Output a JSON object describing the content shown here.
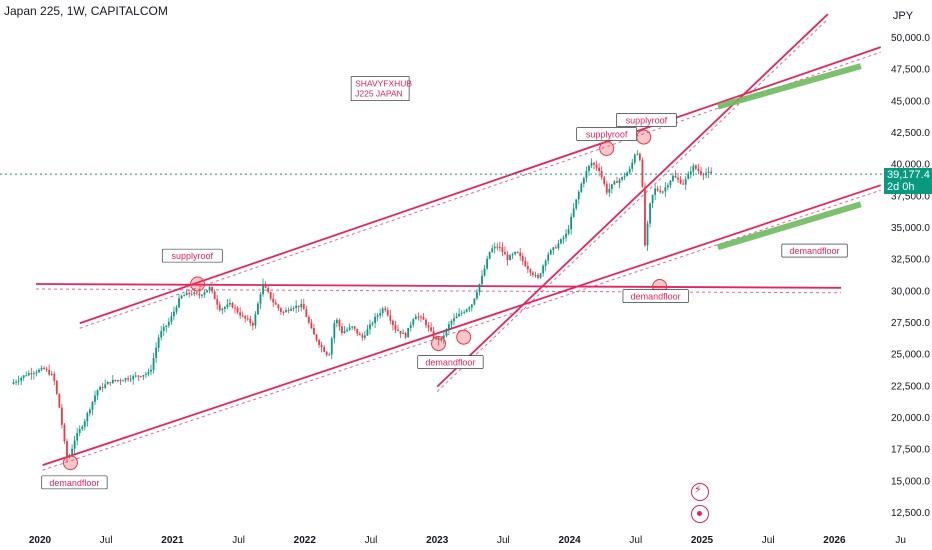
{
  "header": {
    "symbol_title": "Japan 225, 1W, CAPITALCOM",
    "currency": "JPY"
  },
  "last_price": {
    "value": "39,177.4",
    "countdown": "2d 0h",
    "color": "#089981"
  },
  "icons": {
    "alert": "flash-icon",
    "target": "target-icon"
  },
  "colors": {
    "up": "#089981",
    "down": "#f23645",
    "trendline": "#e8245e",
    "zone": "#6dbb5f",
    "label_text": "#e0245e"
  },
  "chart_data": {
    "type": "candlestick",
    "title": "",
    "x_ticks": [
      "2020",
      "Jul",
      "2021",
      "Jul",
      "2022",
      "Jul",
      "2023",
      "Jul",
      "2024",
      "Jul",
      "2025",
      "Jul",
      "2026",
      "Ju"
    ],
    "y_ticks": [
      "50,000.0",
      "47,500.0",
      "45,000.0",
      "42,500.0",
      "40,000.0",
      "37,500.0",
      "35,000.0",
      "32,500.0",
      "30,000.0",
      "27,500.0",
      "25,000.0",
      "22,500.0",
      "20,000.0",
      "17,500.0",
      "15,000.0",
      "12,500.0"
    ],
    "ylim": [
      11500,
      51500
    ],
    "price_path": [
      [
        2019.8,
        22600
      ],
      [
        2019.92,
        23400
      ],
      [
        2020.05,
        23800
      ],
      [
        2020.12,
        23200
      ],
      [
        2020.17,
        20500
      ],
      [
        2020.21,
        17500
      ],
      [
        2020.23,
        16500
      ],
      [
        2020.28,
        18200
      ],
      [
        2020.36,
        19800
      ],
      [
        2020.45,
        22100
      ],
      [
        2020.55,
        22800
      ],
      [
        2020.7,
        23100
      ],
      [
        2020.85,
        23500
      ],
      [
        2020.92,
        26500
      ],
      [
        2021.0,
        27600
      ],
      [
        2021.08,
        29500
      ],
      [
        2021.16,
        29800
      ],
      [
        2021.22,
        29600
      ],
      [
        2021.3,
        30200
      ],
      [
        2021.38,
        28500
      ],
      [
        2021.46,
        28900
      ],
      [
        2021.55,
        27900
      ],
      [
        2021.63,
        27300
      ],
      [
        2021.7,
        30500
      ],
      [
        2021.78,
        29100
      ],
      [
        2021.85,
        28200
      ],
      [
        2021.92,
        28700
      ],
      [
        2022.0,
        28800
      ],
      [
        2022.08,
        26600
      ],
      [
        2022.14,
        25600
      ],
      [
        2022.2,
        24800
      ],
      [
        2022.25,
        27900
      ],
      [
        2022.3,
        26700
      ],
      [
        2022.38,
        27100
      ],
      [
        2022.45,
        26200
      ],
      [
        2022.55,
        27800
      ],
      [
        2022.62,
        28700
      ],
      [
        2022.7,
        27000
      ],
      [
        2022.78,
        26400
      ],
      [
        2022.85,
        28100
      ],
      [
        2022.92,
        27600
      ],
      [
        2023.0,
        26200
      ],
      [
        2023.05,
        26100
      ],
      [
        2023.12,
        27500
      ],
      [
        2023.2,
        28200
      ],
      [
        2023.28,
        28900
      ],
      [
        2023.35,
        30800
      ],
      [
        2023.42,
        33200
      ],
      [
        2023.48,
        33500
      ],
      [
        2023.55,
        32500
      ],
      [
        2023.62,
        33000
      ],
      [
        2023.7,
        31800
      ],
      [
        2023.78,
        30900
      ],
      [
        2023.85,
        32800
      ],
      [
        2023.92,
        33500
      ],
      [
        2024.0,
        34500
      ],
      [
        2024.06,
        36800
      ],
      [
        2024.12,
        38800
      ],
      [
        2024.18,
        40100
      ],
      [
        2024.24,
        39600
      ],
      [
        2024.3,
        37800
      ],
      [
        2024.36,
        38500
      ],
      [
        2024.42,
        38900
      ],
      [
        2024.48,
        39600
      ],
      [
        2024.52,
        41100
      ],
      [
        2024.56,
        40200
      ],
      [
        2024.59,
        33200
      ],
      [
        2024.62,
        36500
      ],
      [
        2024.66,
        38000
      ],
      [
        2024.72,
        37800
      ],
      [
        2024.8,
        39000
      ],
      [
        2024.88,
        38400
      ],
      [
        2024.95,
        39800
      ],
      [
        2025.02,
        39200
      ],
      [
        2025.06,
        39300
      ],
      [
        2025.08,
        39177.4
      ]
    ],
    "lines": [
      {
        "name": "channel-upper",
        "points": [
          [
            2020.3,
            27400
          ],
          [
            2026.35,
            49200
          ]
        ]
      },
      {
        "name": "channel-lower",
        "points": [
          [
            2020.02,
            16200
          ],
          [
            2026.35,
            38300
          ]
        ]
      },
      {
        "name": "horizontal-resistance",
        "points": [
          [
            2019.97,
            30500
          ],
          [
            2026.05,
            30200
          ]
        ]
      },
      {
        "name": "steep-trendline",
        "points": [
          [
            2023.0,
            22400
          ],
          [
            2025.95,
            51800
          ]
        ]
      }
    ],
    "zones": [
      {
        "name": "supply-zone",
        "points": [
          [
            2025.12,
            44500
          ],
          [
            2026.2,
            47700
          ]
        ]
      },
      {
        "name": "demand-zone",
        "points": [
          [
            2025.12,
            33400
          ],
          [
            2026.2,
            36800
          ]
        ]
      }
    ],
    "annotations": [
      {
        "text": "supplyroof",
        "x": 2021.15,
        "y": 32700
      },
      {
        "text": "supplyroof",
        "x": 2024.28,
        "y": 42300
      },
      {
        "text": "supplyroof",
        "x": 2024.58,
        "y": 43400
      },
      {
        "text": "demandfloor",
        "x": 2020.26,
        "y": 14800
      },
      {
        "text": "demandfloor",
        "x": 2023.1,
        "y": 24300
      },
      {
        "text": "demandfloor",
        "x": 2024.65,
        "y": 29500
      },
      {
        "text": "demandfloor",
        "x": 2025.85,
        "y": 33100
      }
    ],
    "markers": [
      [
        2020.23,
        16400
      ],
      [
        2021.19,
        30500
      ],
      [
        2023.01,
        25800
      ],
      [
        2023.2,
        26300
      ],
      [
        2024.28,
        41200
      ],
      [
        2024.56,
        42100
      ],
      [
        2024.68,
        30300
      ]
    ],
    "note": {
      "lines": [
        "SHAVYFXHUB",
        "J225 JAPAN"
      ],
      "x": 2022.38,
      "y": 46000
    }
  }
}
